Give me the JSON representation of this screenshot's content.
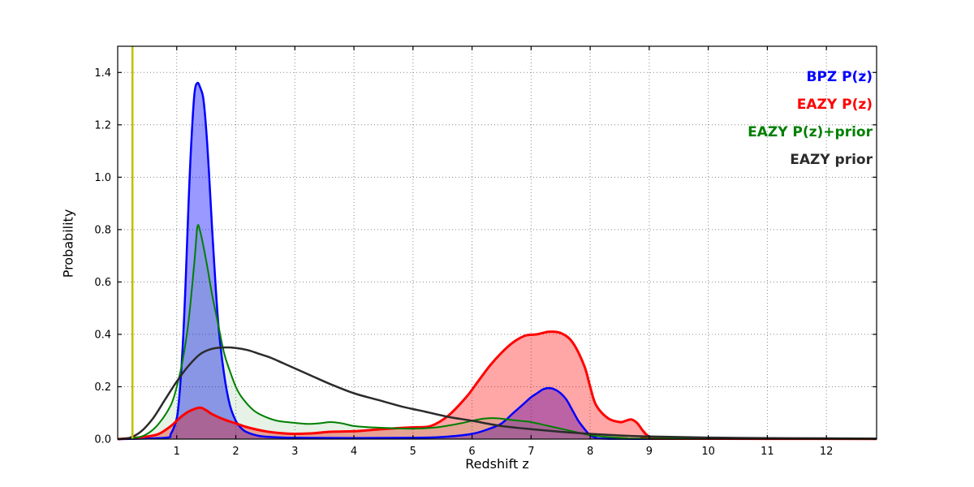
{
  "chart_data": {
    "type": "line",
    "title": "",
    "xlabel": "Redshift z",
    "ylabel": "Probability",
    "xlim": [
      0,
      12.85
    ],
    "ylim": [
      0,
      1.5
    ],
    "xticks": [
      1,
      2,
      3,
      4,
      5,
      6,
      7,
      8,
      9,
      10,
      11,
      12
    ],
    "xtick_labels": [
      "1",
      "2",
      "3",
      "4",
      "5",
      "6",
      "7",
      "8",
      "9",
      "10",
      "11",
      "12"
    ],
    "yticks": [
      0.0,
      0.2,
      0.4,
      0.6,
      0.8,
      1.0,
      1.2,
      1.4
    ],
    "ytick_labels": [
      "0.0",
      "0.2",
      "0.4",
      "0.6",
      "0.8",
      "1.0",
      "1.2",
      "1.4"
    ],
    "grid": "dotted",
    "grid_color": "#888888",
    "legend_position": "top-right",
    "vline": {
      "x": 0.25,
      "color": "#bfbf00",
      "width": 2.5
    },
    "series": [
      {
        "name": "BPZ P(z)",
        "color": "#0000ff",
        "fill": true,
        "fill_opacity": 0.4,
        "line_width": 2.5,
        "x": [
          0,
          0.8,
          0.9,
          1.0,
          1.05,
          1.1,
          1.15,
          1.2,
          1.25,
          1.3,
          1.35,
          1.4,
          1.45,
          1.5,
          1.55,
          1.6,
          1.7,
          1.8,
          1.9,
          2.0,
          2.1,
          2.2,
          2.4,
          2.6,
          3.0,
          4.0,
          5.0,
          5.5,
          6.0,
          6.3,
          6.5,
          6.7,
          6.9,
          7.0,
          7.1,
          7.2,
          7.3,
          7.4,
          7.5,
          7.6,
          7.7,
          7.8,
          7.9,
          8.0,
          8.1,
          8.2,
          9.0,
          12.85
        ],
        "y": [
          0,
          0.005,
          0.02,
          0.08,
          0.18,
          0.35,
          0.6,
          0.9,
          1.15,
          1.32,
          1.36,
          1.34,
          1.3,
          1.18,
          1.0,
          0.8,
          0.45,
          0.25,
          0.13,
          0.07,
          0.04,
          0.025,
          0.012,
          0.008,
          0.005,
          0.004,
          0.005,
          0.008,
          0.02,
          0.04,
          0.06,
          0.1,
          0.14,
          0.16,
          0.175,
          0.19,
          0.195,
          0.19,
          0.175,
          0.15,
          0.11,
          0.07,
          0.04,
          0.015,
          0.005,
          0.002,
          0.001,
          0.001
        ]
      },
      {
        "name": "EAZY P(z)",
        "color": "#ff0000",
        "fill": true,
        "fill_opacity": 0.35,
        "line_width": 3,
        "x": [
          0,
          0.3,
          0.5,
          0.7,
          0.9,
          1.0,
          1.1,
          1.2,
          1.3,
          1.4,
          1.5,
          1.6,
          1.8,
          2.0,
          2.2,
          2.5,
          2.8,
          3.0,
          3.3,
          3.6,
          4.0,
          4.3,
          4.6,
          5.0,
          5.3,
          5.6,
          5.9,
          6.1,
          6.3,
          6.5,
          6.7,
          6.9,
          7.1,
          7.3,
          7.5,
          7.7,
          7.9,
          8.0,
          8.1,
          8.3,
          8.5,
          8.6,
          8.7,
          8.8,
          8.9,
          9.0,
          9.2,
          12.85
        ],
        "y": [
          0,
          0.005,
          0.01,
          0.02,
          0.05,
          0.07,
          0.09,
          0.105,
          0.115,
          0.12,
          0.11,
          0.095,
          0.075,
          0.06,
          0.045,
          0.03,
          0.022,
          0.02,
          0.022,
          0.028,
          0.03,
          0.035,
          0.04,
          0.045,
          0.05,
          0.09,
          0.16,
          0.22,
          0.28,
          0.33,
          0.37,
          0.395,
          0.4,
          0.41,
          0.405,
          0.37,
          0.28,
          0.2,
          0.13,
          0.08,
          0.065,
          0.07,
          0.075,
          0.06,
          0.03,
          0.01,
          0.002,
          0.001
        ]
      },
      {
        "name": "EAZY P(z)+prior",
        "color": "#007f00",
        "fill": true,
        "fill_opacity": 0.1,
        "line_width": 2,
        "x": [
          0,
          0.3,
          0.5,
          0.7,
          0.9,
          1.0,
          1.1,
          1.2,
          1.3,
          1.35,
          1.4,
          1.5,
          1.6,
          1.7,
          1.8,
          1.9,
          2.0,
          2.1,
          2.3,
          2.5,
          2.7,
          3.0,
          3.2,
          3.4,
          3.6,
          3.8,
          4.0,
          4.3,
          4.6,
          5.0,
          5.4,
          5.8,
          6.0,
          6.2,
          6.4,
          6.6,
          6.8,
          7.0,
          7.3,
          7.6,
          8.0,
          8.3,
          8.6,
          9.0,
          12.85
        ],
        "y": [
          0,
          0.005,
          0.02,
          0.06,
          0.13,
          0.2,
          0.3,
          0.45,
          0.68,
          0.81,
          0.79,
          0.68,
          0.55,
          0.44,
          0.33,
          0.26,
          0.2,
          0.16,
          0.11,
          0.085,
          0.07,
          0.062,
          0.058,
          0.06,
          0.065,
          0.06,
          0.05,
          0.045,
          0.042,
          0.04,
          0.045,
          0.06,
          0.07,
          0.078,
          0.08,
          0.075,
          0.07,
          0.065,
          0.05,
          0.035,
          0.015,
          0.008,
          0.004,
          0.002,
          0.001
        ]
      },
      {
        "name": "EAZY prior",
        "color": "#2b2b2b",
        "fill": false,
        "fill_opacity": 0,
        "line_width": 2.5,
        "x": [
          0,
          0.2,
          0.4,
          0.6,
          0.8,
          1.0,
          1.2,
          1.4,
          1.6,
          1.8,
          2.0,
          2.2,
          2.4,
          2.6,
          2.8,
          3.0,
          3.3,
          3.6,
          4.0,
          4.4,
          4.8,
          5.2,
          5.6,
          6.0,
          6.5,
          7.0,
          7.5,
          8.0,
          8.5,
          9.0,
          10.0,
          11.0,
          12.0,
          12.85
        ],
        "y": [
          0,
          0.005,
          0.03,
          0.08,
          0.15,
          0.22,
          0.28,
          0.325,
          0.345,
          0.35,
          0.348,
          0.34,
          0.325,
          0.31,
          0.29,
          0.27,
          0.24,
          0.21,
          0.175,
          0.15,
          0.125,
          0.105,
          0.085,
          0.07,
          0.05,
          0.038,
          0.028,
          0.02,
          0.014,
          0.01,
          0.006,
          0.004,
          0.003,
          0.002
        ]
      }
    ]
  },
  "legend": {
    "items": [
      {
        "label": "BPZ P(z)",
        "color": "#0000ff"
      },
      {
        "label": "EAZY P(z)",
        "color": "#ff0000"
      },
      {
        "label": "EAZY P(z)+prior",
        "color": "#007f00"
      },
      {
        "label": "EAZY prior",
        "color": "#2b2b2b"
      }
    ]
  }
}
